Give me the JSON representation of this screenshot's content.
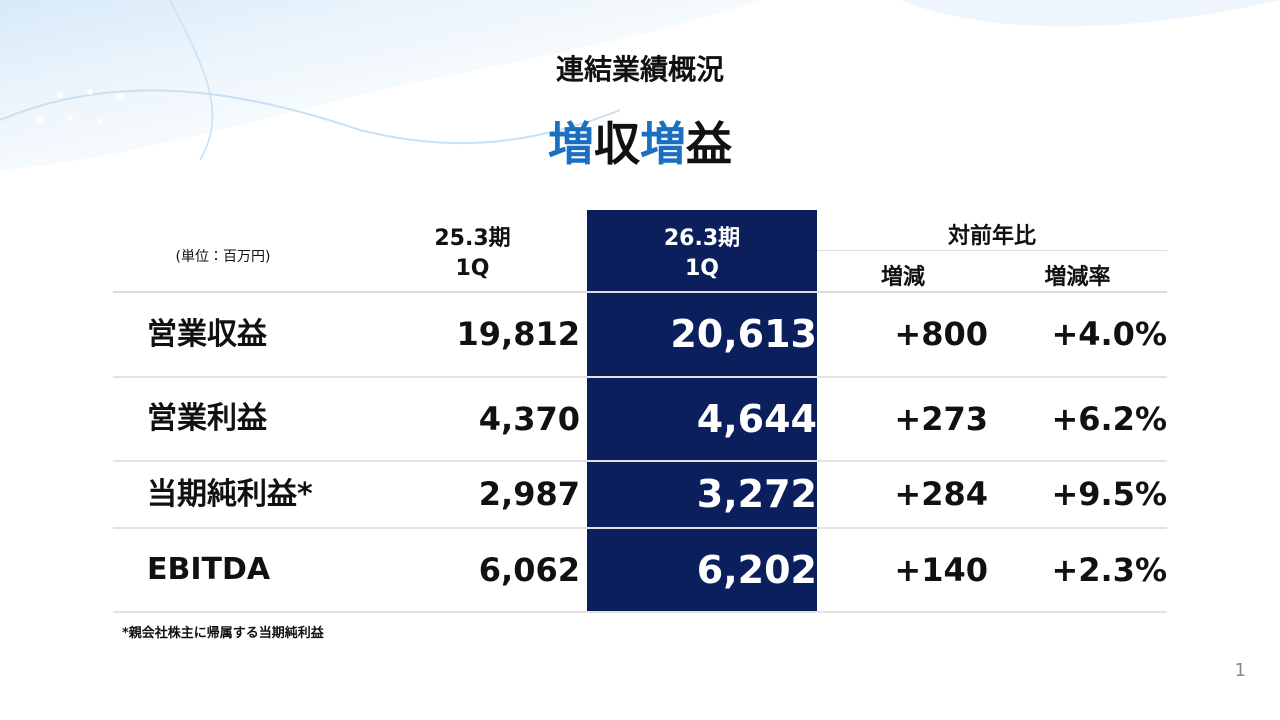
{
  "header": {
    "title": "連結業績概況",
    "headline": [
      "増",
      "収",
      "増",
      "益"
    ]
  },
  "table": {
    "unit": "(単位：百万円)",
    "columns": [
      {
        "period": "25.3期",
        "quarter": "1Q"
      },
      {
        "period": "26.3期",
        "quarter": "1Q"
      }
    ],
    "comparison": {
      "title": "対前年比",
      "subcolumns": [
        "増減",
        "増減率"
      ]
    },
    "rows": [
      [
        "営業収益",
        "19,812",
        "20,613",
        "+800",
        "+4.0%"
      ],
      [
        "営業利益",
        "4,370",
        "4,644",
        "+273",
        "+6.2%"
      ],
      [
        "当期純利益*",
        "2,987",
        "3,272",
        "+284",
        "+9.5%"
      ],
      [
        "EBITDA",
        "6,062",
        "6,202",
        "+140",
        "+2.3%"
      ]
    ]
  },
  "footnote": "*親会社株主に帰属する当期純利益",
  "page_number": "1"
}
